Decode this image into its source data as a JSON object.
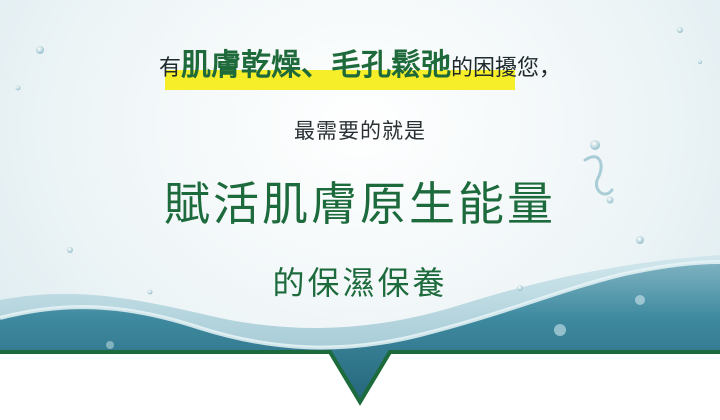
{
  "line1": {
    "prefix": "有",
    "emph1": "肌膚乾燥",
    "sep": "、",
    "emph2": "毛孔鬆弛",
    "suffix": "的困擾您，"
  },
  "line2": "最需要的就是",
  "line3": "賦活肌膚原生能量",
  "line4": "的保濕保養",
  "colors": {
    "accent_green": "#1d6b3d",
    "highlight_yellow": "#f7ee2a",
    "water": "#2e7f95"
  }
}
